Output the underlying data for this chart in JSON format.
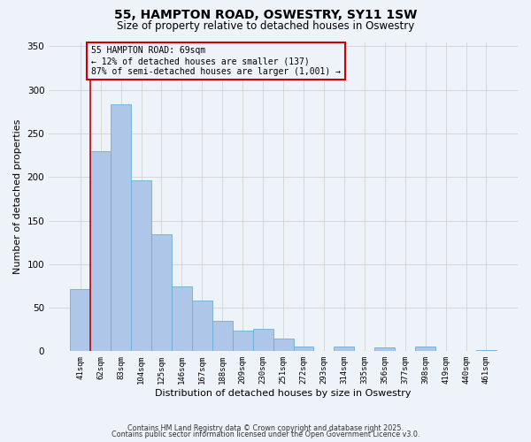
{
  "title": "55, HAMPTON ROAD, OSWESTRY, SY11 1SW",
  "subtitle": "Size of property relative to detached houses in Oswestry",
  "xlabel": "Distribution of detached houses by size in Oswestry",
  "ylabel": "Number of detached properties",
  "bar_labels": [
    "41sqm",
    "62sqm",
    "83sqm",
    "104sqm",
    "125sqm",
    "146sqm",
    "167sqm",
    "188sqm",
    "209sqm",
    "230sqm",
    "251sqm",
    "272sqm",
    "293sqm",
    "314sqm",
    "335sqm",
    "356sqm",
    "377sqm",
    "398sqm",
    "419sqm",
    "440sqm",
    "461sqm"
  ],
  "bar_values": [
    71,
    230,
    283,
    196,
    134,
    74,
    58,
    35,
    24,
    26,
    15,
    5,
    0,
    5,
    0,
    4,
    0,
    5,
    0,
    0,
    1
  ],
  "bar_color": "#aec6e8",
  "bar_edge_color": "#6baed6",
  "ylim": [
    0,
    355
  ],
  "yticks": [
    0,
    50,
    100,
    150,
    200,
    250,
    300,
    350
  ],
  "grid_color": "#cccccc",
  "property_line_color": "#cc0000",
  "annotation_title": "55 HAMPTON ROAD: 69sqm",
  "annotation_line1": "← 12% of detached houses are smaller (137)",
  "annotation_line2": "87% of semi-detached houses are larger (1,001) →",
  "annotation_box_color": "#cc0000",
  "footer_line1": "Contains HM Land Registry data © Crown copyright and database right 2025.",
  "footer_line2": "Contains public sector information licensed under the Open Government Licence v3.0.",
  "background_color": "#eef2f9"
}
